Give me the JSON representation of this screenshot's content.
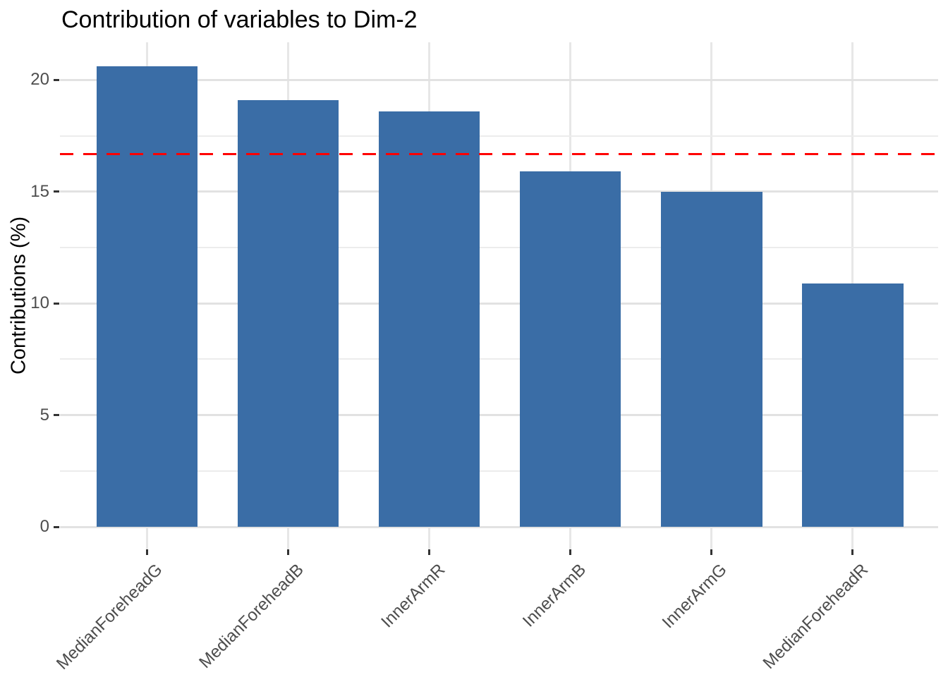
{
  "chart_data": {
    "type": "bar",
    "title": "Contribution of variables to Dim-2",
    "ylabel": "Contributions (%)",
    "xlabel": "",
    "categories": [
      "MedianForeheadG",
      "MedianForeheadB",
      "InnerArmR",
      "InnerArmB",
      "InnerArmG",
      "MedianForeheadR"
    ],
    "values": [
      20.6,
      19.1,
      18.6,
      15.9,
      15.0,
      10.9
    ],
    "yticks": [
      0,
      5,
      10,
      15,
      20
    ],
    "ylim": [
      -1,
      21.7
    ],
    "grid": true,
    "legend": "none",
    "reference_line": {
      "value": 16.67,
      "color": "#ff0000",
      "style": "dashed"
    },
    "colors": {
      "bar": "#3a6da6",
      "grid_major": "#e2e2e2",
      "grid_minor": "#ececec",
      "grid_vertical": "#e7e7e7",
      "axis_text": "#4d4d4d",
      "title_text": "#000000",
      "tick_mark": "#333333",
      "reference": "#ff0000",
      "background": "#ffffff"
    }
  }
}
